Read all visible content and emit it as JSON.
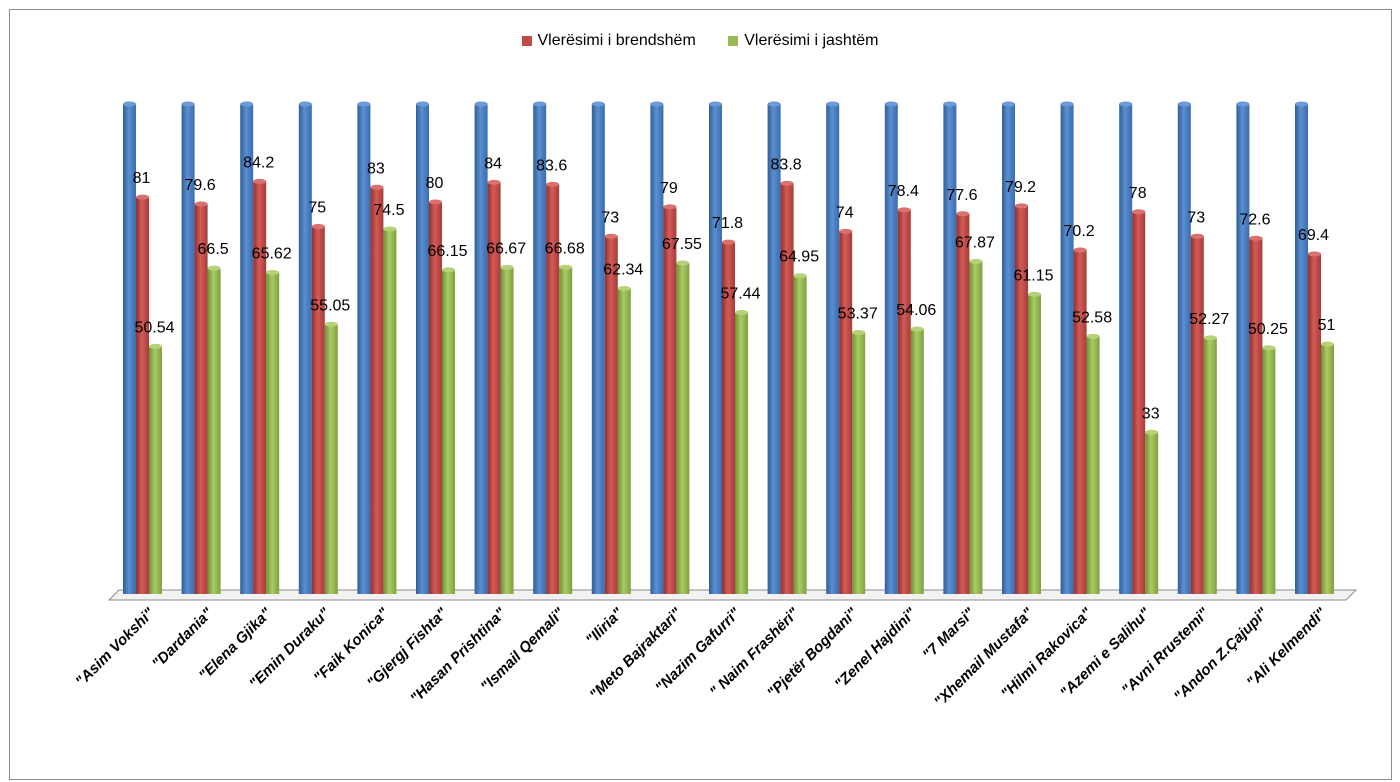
{
  "chart_data": {
    "type": "bar",
    "categories": [
      "\"Asim Vokshi\"",
      "\"Dardania\"",
      "\"Elena Gjika\"",
      "\"Emin Duraku\"",
      "\"Faik Konica\"",
      "\"Gjergj Fishta\"",
      "\"Hasan Prishtina\"",
      "\"Ismail Qemali\"",
      "\"Iliria\"",
      "\"Meto Bajraktari\"",
      "\"Nazim Gafurri\"",
      "\" Naim Frashëri\"",
      "\"Pjetër Bogdani\"",
      "\"Zenel Hajdini\"",
      "\"7 Marsi\"",
      "\"Xhemail Mustafa\"",
      "\"Hilmi Rakovica\"",
      "\"Azemi e Salihu\"",
      "\"Avni Rrustemi\"",
      "\"Andon Z.Çajupi\"",
      "\"Ali Kelmendi\""
    ],
    "series": [
      {
        "name": "",
        "color": "#4a7ebb",
        "values": [
          100,
          100,
          100,
          100,
          100,
          100,
          100,
          100,
          100,
          100,
          100,
          100,
          100,
          100,
          100,
          100,
          100,
          100,
          100,
          100,
          100
        ],
        "labels": false
      },
      {
        "name": "Vlerësimi i brendshëm",
        "color": "#be4b48",
        "values": [
          81,
          79.6,
          84.2,
          75,
          83,
          80,
          84,
          83.6,
          73,
          79,
          71.8,
          83.8,
          74,
          78.4,
          77.6,
          79.2,
          70.2,
          78,
          73,
          72.6,
          69.4
        ],
        "labels": true
      },
      {
        "name": "Vlerësimi i jashtëm",
        "color": "#98b954",
        "values": [
          50.54,
          66.5,
          65.62,
          55.05,
          74.5,
          66.15,
          66.67,
          66.68,
          62.34,
          67.55,
          57.44,
          64.95,
          53.37,
          54.06,
          67.87,
          61.15,
          52.58,
          33,
          52.27,
          50.25,
          51
        ],
        "labels": true
      }
    ],
    "ylim": [
      0,
      100
    ],
    "legend": "top-center",
    "grid": false
  }
}
